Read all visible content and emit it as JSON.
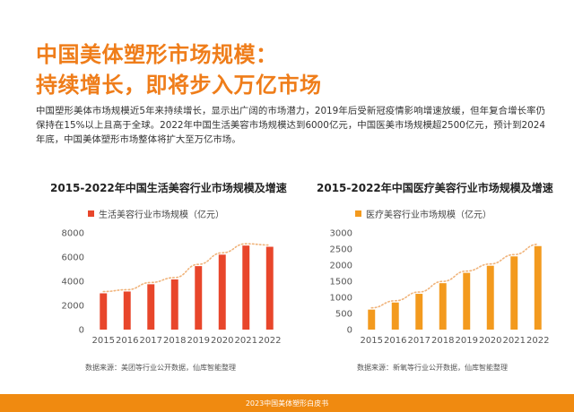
{
  "page": {
    "title_line1": "中国美体塑形市场规模：",
    "title_line2": "持续增长，即将步入万亿市场",
    "intro": "中国塑形美体市场规模近5年来持续增长，显示出广阔的市场潜力，2019年后受新冠疫情影响增速放缓，但年复合增长率仍保持在15%以上且高于全球。2022年中国生活美容市场规模达到6000亿元，中国医美市场规模超2500亿元，预计到2024年底，中国美体塑形市场整体将扩大至万亿市场。",
    "footer": "2023中国美体塑形白皮书"
  },
  "colors": {
    "accent": "#ef7d1a",
    "bar_left": "#e8462b",
    "bar_right": "#f39a1e",
    "trend": "#f0b37a",
    "footer": "#f08a10"
  },
  "chart_data": [
    {
      "type": "bar",
      "title": "2015-2022年中国生活美容行业市场规模及增速",
      "categories": [
        "2015",
        "2016",
        "2017",
        "2018",
        "2019",
        "2020",
        "2021",
        "2022"
      ],
      "series": [
        {
          "name": "生活美容行业市场规模（亿元）",
          "values": [
            3000,
            3150,
            3750,
            4150,
            5250,
            6200,
            6950,
            6850
          ]
        }
      ],
      "ylim": [
        0,
        8000
      ],
      "yticks": [
        0,
        2000,
        4000,
        6000,
        8000
      ],
      "trend_line": true,
      "grid": false,
      "legend": "top",
      "source": "数据来源：美团等行业公开数据，仙库智能整理"
    },
    {
      "type": "bar",
      "title": "2015-2022年中国医疗美容行业市场规模及增速",
      "categories": [
        "2015",
        "2016",
        "2017",
        "2018",
        "2019",
        "2020",
        "2021",
        "2022"
      ],
      "series": [
        {
          "name": "医疗美容行业市场规模（亿元）",
          "values": [
            620,
            840,
            1110,
            1440,
            1760,
            1980,
            2270,
            2590
          ]
        }
      ],
      "ylim": [
        0,
        3000
      ],
      "yticks": [
        0,
        500,
        1000,
        1500,
        2000,
        2500,
        3000
      ],
      "trend_line": true,
      "grid": false,
      "legend": "top",
      "source": "数据来源：新氧等行业公开数据，仙库智能整理"
    }
  ]
}
